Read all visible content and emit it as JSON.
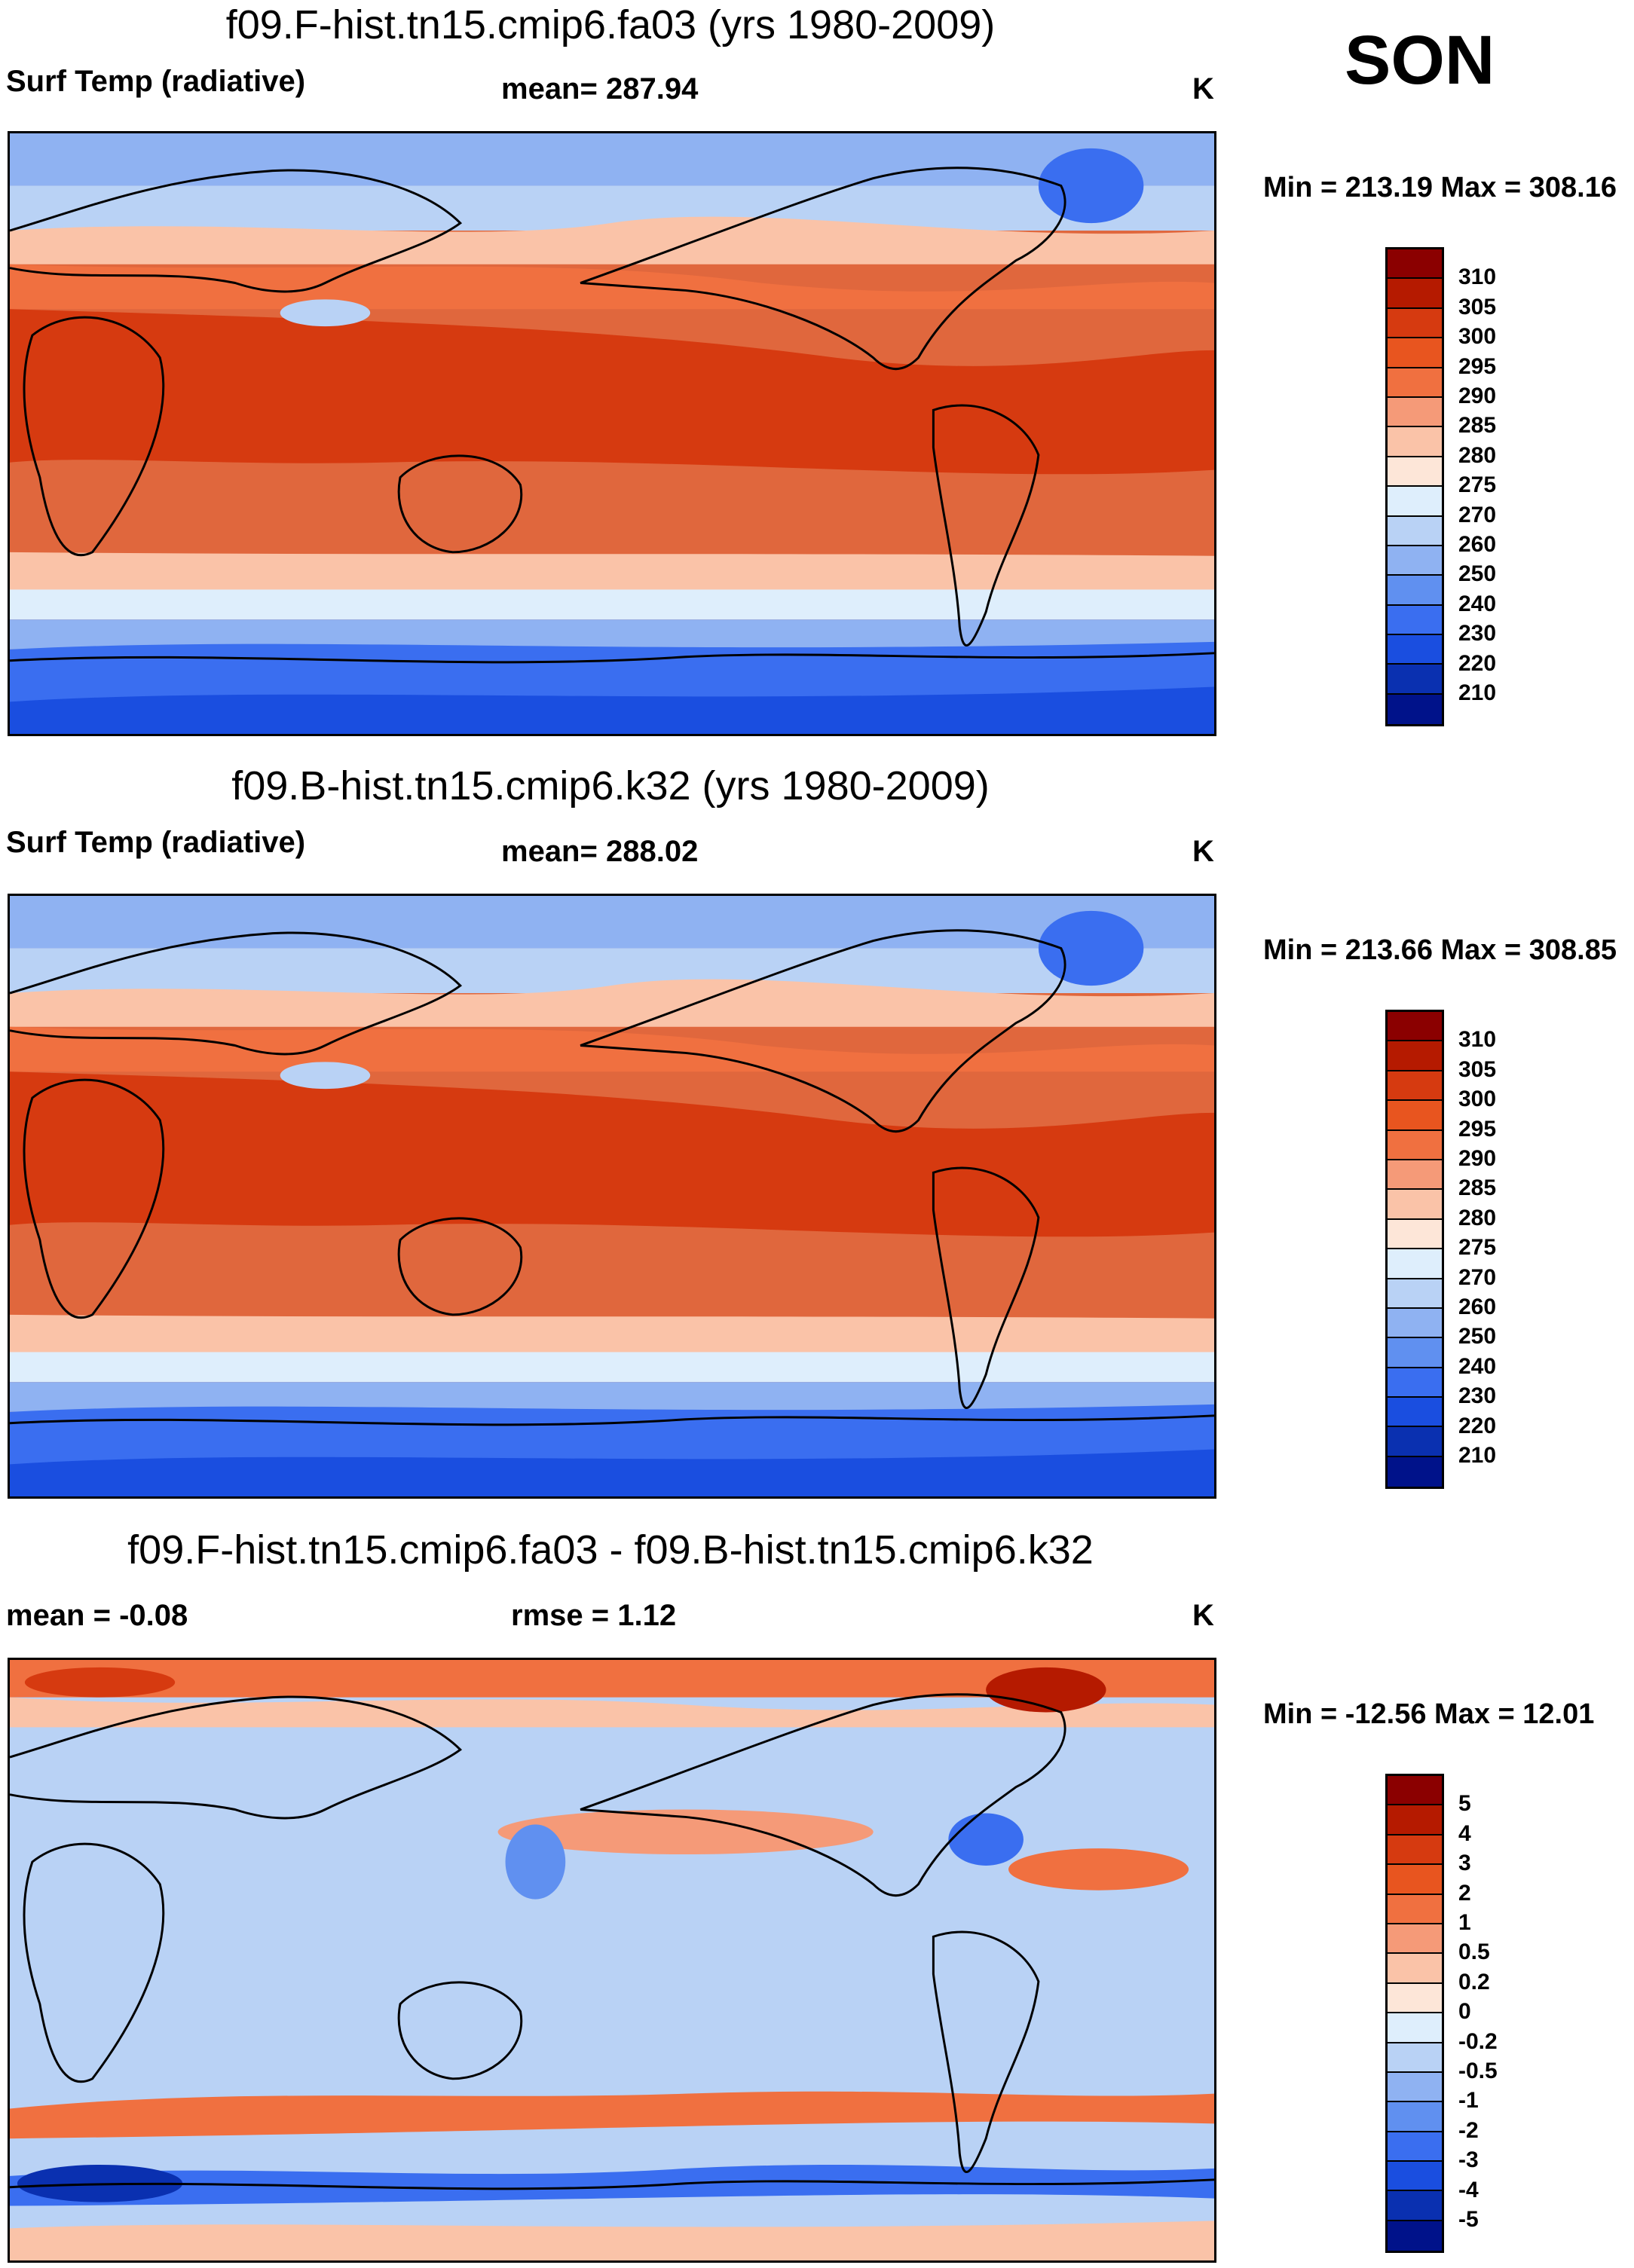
{
  "season": "SON",
  "unit_label": "K",
  "panels": [
    {
      "title": "f09.F-hist.tn15.cmip6.fa03 (yrs 1980-2009)",
      "left_label": "Surf Temp (radiative)",
      "center_label": "mean= 287.94",
      "right_label": "K",
      "minmax": "Min = 213.19 Max = 308.16",
      "colorbar": {
        "ticks": [
          "310",
          "305",
          "300",
          "295",
          "290",
          "285",
          "280",
          "275",
          "270",
          "260",
          "250",
          "240",
          "230",
          "220",
          "210"
        ],
        "colors": [
          "#8b0000",
          "#b51a00",
          "#d63a10",
          "#e8551f",
          "#f07040",
          "#f59a78",
          "#fac3a8",
          "#fde6d8",
          "#deeefc",
          "#b9d2f5",
          "#8fb2f2",
          "#6090f0",
          "#3a6ef0",
          "#1a4ee0",
          "#0a30b0",
          "#00128a"
        ]
      },
      "map_type": "abs"
    },
    {
      "title": "f09.B-hist.tn15.cmip6.k32 (yrs 1980-2009)",
      "left_label": "Surf Temp (radiative)",
      "center_label": "mean= 288.02",
      "right_label": "K",
      "minmax": "Min = 213.66 Max = 308.85",
      "colorbar": {
        "ticks": [
          "310",
          "305",
          "300",
          "295",
          "290",
          "285",
          "280",
          "275",
          "270",
          "260",
          "250",
          "240",
          "230",
          "220",
          "210"
        ],
        "colors": [
          "#8b0000",
          "#b51a00",
          "#d63a10",
          "#e8551f",
          "#f07040",
          "#f59a78",
          "#fac3a8",
          "#fde6d8",
          "#deeefc",
          "#b9d2f5",
          "#8fb2f2",
          "#6090f0",
          "#3a6ef0",
          "#1a4ee0",
          "#0a30b0",
          "#00128a"
        ]
      },
      "map_type": "abs"
    },
    {
      "title": "f09.F-hist.tn15.cmip6.fa03 - f09.B-hist.tn15.cmip6.k32",
      "left_label": "mean =  -0.08",
      "center_label": "rmse =   1.12",
      "right_label": "K",
      "minmax": "Min = -12.56 Max =  12.01",
      "colorbar": {
        "ticks": [
          "5",
          "4",
          "3",
          "2",
          "1",
          "0.5",
          "0.2",
          "0",
          "-0.2",
          "-0.5",
          "-1",
          "-2",
          "-3",
          "-4",
          "-5"
        ],
        "colors": [
          "#8b0000",
          "#b51a00",
          "#d63a10",
          "#e8551f",
          "#f07040",
          "#f59a78",
          "#fac3a8",
          "#fde6d8",
          "#deeefc",
          "#b9d2f5",
          "#8fb2f2",
          "#6090f0",
          "#3a6ef0",
          "#1a4ee0",
          "#0a30b0",
          "#00128a"
        ]
      },
      "map_type": "diff"
    }
  ]
}
